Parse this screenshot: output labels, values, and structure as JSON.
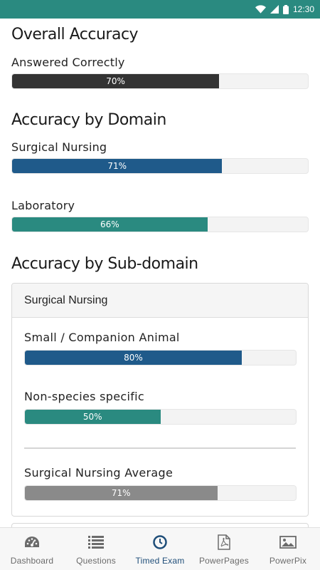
{
  "status_bar": {
    "time": "12:30"
  },
  "overall": {
    "title": "Overall Accuracy",
    "label": "Answered Correctly",
    "percent": 70,
    "percent_text": "70%",
    "color": "#333333"
  },
  "by_domain": {
    "title": "Accuracy by Domain",
    "items": [
      {
        "label": "Surgical Nursing",
        "percent": 71,
        "percent_text": "71%",
        "color": "#1f5a8a"
      },
      {
        "label": "Laboratory",
        "percent": 66,
        "percent_text": "66%",
        "color": "#2a8a80"
      }
    ]
  },
  "by_subdomain": {
    "title": "Accuracy by Sub-domain",
    "card_header": "Surgical Nursing",
    "items": [
      {
        "label": "Small / Companion Animal",
        "percent": 80,
        "percent_text": "80%",
        "color": "#1f5a8a"
      },
      {
        "label": "Non-species specific",
        "percent": 50,
        "percent_text": "50%",
        "color": "#2a8a80"
      }
    ],
    "average": {
      "label": "Surgical Nursing Average",
      "percent": 71,
      "percent_text": "71%",
      "color": "#8a8a8a"
    }
  },
  "bottom_nav": [
    {
      "label": "Dashboard",
      "icon": "dashboard-gauge-icon",
      "active": false
    },
    {
      "label": "Questions",
      "icon": "list-icon",
      "active": false
    },
    {
      "label": "Timed Exam",
      "icon": "clock-icon",
      "active": true
    },
    {
      "label": "PowerPages",
      "icon": "pdf-file-icon",
      "active": false
    },
    {
      "label": "PowerPix",
      "icon": "image-icon",
      "active": false
    }
  ],
  "colors": {
    "status_bar": "#2a8a80",
    "active_nav": "#1f4e79",
    "inactive_nav": "#6b6b6b"
  }
}
